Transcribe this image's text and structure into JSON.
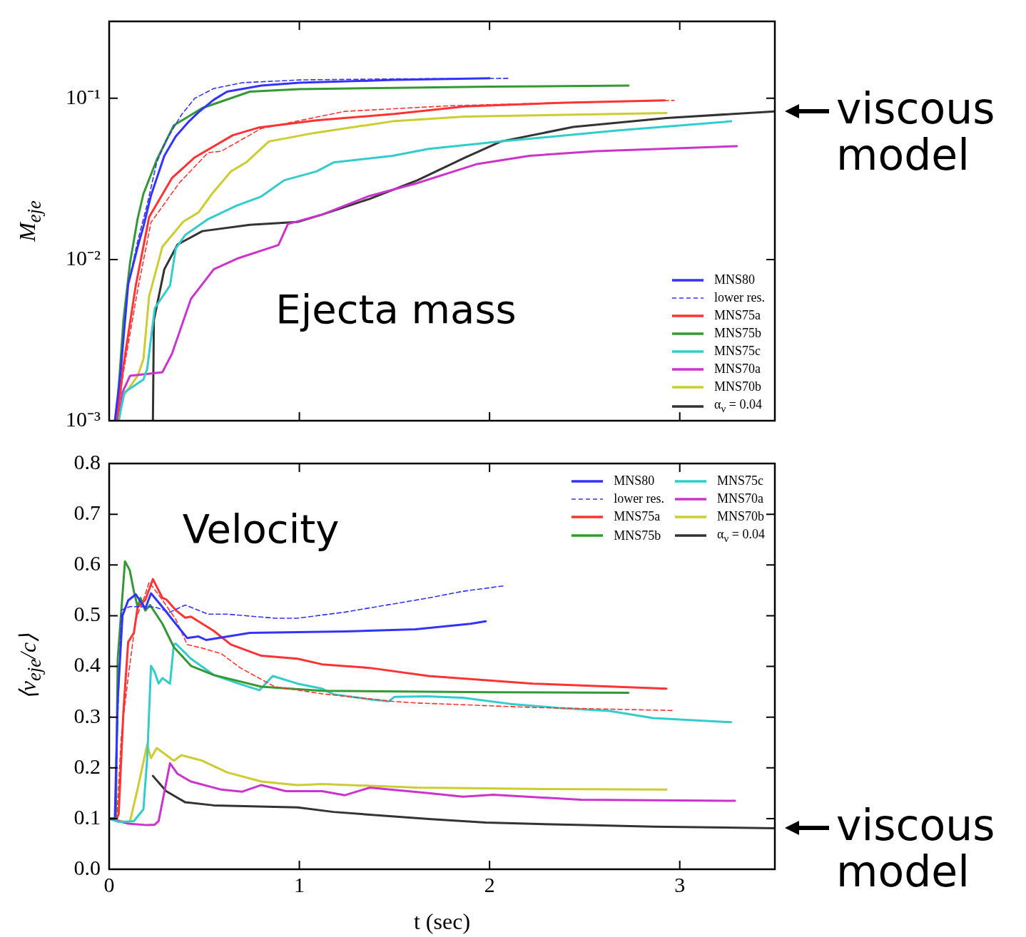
{
  "chart_data": [
    {
      "type": "line",
      "ylabel": "M$_{eje}$",
      "annotations": [
        "Ejecta mass",
        {
          "text": "viscous model",
          "x": 3.5,
          "y": 0.083
        }
      ],
      "xlim": [
        0,
        3.5
      ],
      "ylim": [
        0.001,
        0.3
      ],
      "xticks": [
        0,
        1,
        2,
        3
      ],
      "yticks": [
        {
          "value": 0.001,
          "label": "10⁻³"
        },
        {
          "value": 0.01,
          "label": "10⁻²"
        },
        {
          "value": 0.1,
          "label": "10⁻¹"
        }
      ],
      "log": "y",
      "tick_labels": "y",
      "legend": "bottom right",
      "series": [
        {
          "name": "MNS80",
          "color": "#3333ff",
          "x": [
            0.03,
            0.06,
            0.1,
            0.15,
            0.18,
            0.22,
            0.29,
            0.35,
            0.42,
            0.47,
            0.55,
            0.62,
            0.8,
            1.0,
            1.5,
            2.0
          ],
          "values": [
            0.001,
            0.002,
            0.007,
            0.012,
            0.016,
            0.025,
            0.044,
            0.058,
            0.072,
            0.082,
            0.098,
            0.11,
            0.12,
            0.125,
            0.13,
            0.133
          ]
        },
        {
          "name": "lower res.",
          "color": "#3333ff",
          "line_style": "dashed",
          "x": [
            0.03,
            0.06,
            0.1,
            0.15,
            0.2,
            0.25,
            0.3,
            0.38,
            0.45,
            0.55,
            0.7,
            1.0,
            1.5,
            2.1
          ],
          "values": [
            0.001,
            0.002,
            0.007,
            0.013,
            0.022,
            0.04,
            0.055,
            0.079,
            0.1,
            0.115,
            0.125,
            0.13,
            0.132,
            0.133
          ]
        },
        {
          "name": "MNS75a",
          "color": "#ff3333",
          "x": [
            0.04,
            0.075,
            0.14,
            0.21,
            0.33,
            0.45,
            0.65,
            0.79,
            1.09,
            1.5,
            1.87,
            2.4,
            2.92
          ],
          "values": [
            0.001,
            0.0022,
            0.0069,
            0.0183,
            0.032,
            0.043,
            0.059,
            0.066,
            0.073,
            0.08,
            0.089,
            0.094,
            0.097
          ]
        },
        {
          "color": "#ff3333",
          "line_style": "dashed",
          "x": [
            0.04,
            0.075,
            0.15,
            0.22,
            0.37,
            0.52,
            0.59,
            0.8,
            1.24,
            1.8,
            2.4,
            2.97
          ],
          "values": [
            0.001,
            0.002,
            0.0065,
            0.017,
            0.03,
            0.046,
            0.047,
            0.065,
            0.083,
            0.09,
            0.094,
            0.097
          ]
        },
        {
          "name": "MNS75b",
          "color": "#339933",
          "x": [
            0.04,
            0.05,
            0.075,
            0.11,
            0.15,
            0.18,
            0.25,
            0.34,
            0.49,
            0.74,
            1.0,
            1.5,
            2.0,
            2.73
          ],
          "values": [
            0.001,
            0.0016,
            0.0042,
            0.0096,
            0.018,
            0.0255,
            0.0415,
            0.068,
            0.087,
            0.11,
            0.114,
            0.116,
            0.118,
            0.12
          ]
        },
        {
          "name": "MNS75c",
          "color": "#33cccc",
          "x": [
            0.05,
            0.08,
            0.18,
            0.2,
            0.24,
            0.32,
            0.35,
            0.4,
            0.52,
            0.67,
            0.8,
            0.92,
            1.09,
            1.18,
            1.49,
            1.68,
            2.06,
            2.66,
            3.27
          ],
          "values": [
            0.001,
            0.0015,
            0.0018,
            0.0021,
            0.005,
            0.0069,
            0.0117,
            0.0142,
            0.0178,
            0.0216,
            0.0246,
            0.031,
            0.0352,
            0.04,
            0.044,
            0.0486,
            0.054,
            0.063,
            0.072
          ]
        },
        {
          "name": "MNS70a",
          "color": "#cc33cc",
          "x": [
            0.05,
            0.07,
            0.11,
            0.28,
            0.33,
            0.43,
            0.55,
            0.68,
            0.89,
            0.94,
            1.12,
            1.36,
            1.62,
            1.93,
            2.21,
            2.56,
            3.3
          ],
          "values": [
            0.001,
            0.0015,
            0.0019,
            0.002,
            0.0026,
            0.0057,
            0.0087,
            0.0102,
            0.0123,
            0.0166,
            0.019,
            0.0246,
            0.0298,
            0.039,
            0.044,
            0.047,
            0.0505
          ]
        },
        {
          "name": "MNS70b",
          "color": "#cccc33",
          "x": [
            0.05,
            0.07,
            0.15,
            0.18,
            0.21,
            0.28,
            0.39,
            0.47,
            0.54,
            0.64,
            0.72,
            0.84,
            1.08,
            1.49,
            1.87,
            2.4,
            2.93
          ],
          "values": [
            0.001,
            0.0014,
            0.0019,
            0.0024,
            0.0059,
            0.012,
            0.0172,
            0.0196,
            0.0255,
            0.0352,
            0.04,
            0.054,
            0.061,
            0.072,
            0.077,
            0.079,
            0.081
          ]
        },
        {
          "name": "α$_{ν}$ = 0.04",
          "color": "#333333",
          "x": [
            0.23,
            0.235,
            0.29,
            0.36,
            0.49,
            0.74,
            0.99,
            1.12,
            1.37,
            1.62,
            1.87,
            2.06,
            2.44,
            2.93,
            3.5
          ],
          "values": [
            0.001,
            0.0042,
            0.0087,
            0.0124,
            0.015,
            0.0164,
            0.0171,
            0.019,
            0.0238,
            0.031,
            0.0428,
            0.054,
            0.0664,
            0.0754,
            0.083
          ]
        }
      ]
    },
    {
      "type": "line",
      "xlabel": "t (sec)",
      "ylabel": "⟨v$_{eje}$/c⟩",
      "annotations": [
        "Velocity",
        {
          "text": "viscous model",
          "x": 3.5,
          "y": 0.081
        }
      ],
      "xlim": [
        0,
        3.5
      ],
      "ylim": [
        0,
        0.8
      ],
      "xticks": [
        0,
        1,
        2,
        3
      ],
      "yticks": [
        {
          "value": 0,
          "label": "0.0"
        },
        0.1,
        0.2,
        0.3,
        0.4,
        0.5,
        0.6,
        0.7,
        0.8
      ],
      "legend": "top right",
      "series": [
        {
          "name": "MNS80",
          "color": "#3333ff",
          "x": [
            0.0,
            0.03,
            0.045,
            0.07,
            0.1,
            0.14,
            0.19,
            0.22,
            0.28,
            0.35,
            0.41,
            0.47,
            0.51,
            0.74,
            1.24,
            1.61,
            1.9,
            1.98
          ],
          "values": [
            0.1,
            0.1,
            0.333,
            0.5,
            0.53,
            0.542,
            0.514,
            0.544,
            0.517,
            0.484,
            0.456,
            0.459,
            0.452,
            0.466,
            0.469,
            0.473,
            0.484,
            0.489
          ]
        },
        {
          "name": "lower res.",
          "color": "#3333ff",
          "line_style": "dashed",
          "x": [
            0.0,
            0.03,
            0.045,
            0.064,
            0.11,
            0.24,
            0.32,
            0.4,
            0.52,
            0.62,
            0.87,
            0.99,
            1.24,
            1.68,
            1.86,
            2.08
          ],
          "values": [
            0.1,
            0.1,
            0.3,
            0.511,
            0.518,
            0.517,
            0.507,
            0.521,
            0.503,
            0.503,
            0.495,
            0.495,
            0.507,
            0.535,
            0.548,
            0.559
          ]
        },
        {
          "name": "MNS75a",
          "color": "#ff3333",
          "x": [
            0.0,
            0.04,
            0.05,
            0.075,
            0.1,
            0.13,
            0.15,
            0.19,
            0.23,
            0.28,
            0.3,
            0.35,
            0.4,
            0.43,
            0.55,
            0.64,
            0.8,
            0.99,
            1.12,
            1.37,
            1.68,
            2.23,
            2.93
          ],
          "values": [
            0.1,
            0.1,
            0.109,
            0.311,
            0.448,
            0.466,
            0.517,
            0.531,
            0.572,
            0.535,
            0.532,
            0.511,
            0.496,
            0.498,
            0.47,
            0.443,
            0.421,
            0.415,
            0.404,
            0.397,
            0.381,
            0.366,
            0.356
          ]
        },
        {
          "color": "#ff3333",
          "line_style": "dashed",
          "x": [
            0.0,
            0.04,
            0.064,
            0.1,
            0.14,
            0.18,
            0.21,
            0.28,
            0.35,
            0.41,
            0.49,
            0.59,
            0.69,
            0.87,
            1.12,
            1.49,
            1.61,
            2.23,
            2.96
          ],
          "values": [
            0.1,
            0.1,
            0.264,
            0.379,
            0.493,
            0.531,
            0.566,
            0.531,
            0.493,
            0.443,
            0.436,
            0.425,
            0.397,
            0.36,
            0.346,
            0.331,
            0.328,
            0.319,
            0.313
          ]
        },
        {
          "name": "MNS75b",
          "color": "#339933",
          "x": [
            0.0,
            0.035,
            0.045,
            0.083,
            0.108,
            0.13,
            0.15,
            0.165,
            0.19,
            0.215,
            0.28,
            0.34,
            0.43,
            0.55,
            0.8,
            1.12,
            2.0,
            2.73
          ],
          "values": [
            0.1,
            0.1,
            0.415,
            0.607,
            0.59,
            0.548,
            0.517,
            0.535,
            0.51,
            0.521,
            0.484,
            0.438,
            0.401,
            0.383,
            0.36,
            0.352,
            0.349,
            0.348
          ]
        },
        {
          "name": "MNS75c",
          "color": "#33cccc",
          "x": [
            0.0,
            0.05,
            0.13,
            0.18,
            0.2,
            0.22,
            0.24,
            0.26,
            0.28,
            0.32,
            0.34,
            0.35,
            0.43,
            0.55,
            0.68,
            0.79,
            0.86,
            0.99,
            1.12,
            1.18,
            1.37,
            1.47,
            1.5,
            1.67,
            1.86,
            2.11,
            2.36,
            2.63,
            2.86,
            3.27
          ],
          "values": [
            0.1,
            0.093,
            0.095,
            0.118,
            0.219,
            0.401,
            0.388,
            0.366,
            0.377,
            0.366,
            0.443,
            0.445,
            0.415,
            0.383,
            0.366,
            0.353,
            0.381,
            0.366,
            0.356,
            0.345,
            0.335,
            0.331,
            0.34,
            0.341,
            0.338,
            0.326,
            0.318,
            0.312,
            0.298,
            0.29
          ]
        },
        {
          "name": "MNS70a",
          "color": "#cc33cc",
          "x": [
            0.0,
            0.1,
            0.2,
            0.24,
            0.26,
            0.32,
            0.36,
            0.43,
            0.59,
            0.7,
            0.8,
            0.93,
            1.12,
            1.24,
            1.37,
            1.68,
            1.86,
            2.02,
            2.48,
            3.29
          ],
          "values": [
            0.1,
            0.09,
            0.087,
            0.088,
            0.095,
            0.209,
            0.188,
            0.173,
            0.157,
            0.153,
            0.166,
            0.154,
            0.154,
            0.146,
            0.161,
            0.15,
            0.143,
            0.147,
            0.137,
            0.135
          ]
        },
        {
          "name": "MNS70b",
          "color": "#cccc33",
          "x": [
            0.0,
            0.1,
            0.11,
            0.15,
            0.2,
            0.22,
            0.25,
            0.34,
            0.38,
            0.49,
            0.62,
            0.8,
            0.99,
            1.12,
            1.62,
            2.3,
            2.93
          ],
          "values": [
            0.1,
            0.092,
            0.095,
            0.159,
            0.246,
            0.219,
            0.239,
            0.214,
            0.225,
            0.214,
            0.191,
            0.173,
            0.166,
            0.168,
            0.161,
            0.158,
            0.157
          ]
        },
        {
          "name": "α$_{ν}$ = 0.04",
          "color": "#333333",
          "x": [
            0.23,
            0.3,
            0.4,
            0.55,
            0.99,
            1.18,
            1.68,
            1.98,
            2.5,
            2.86,
            3.5
          ],
          "values": [
            0.184,
            0.154,
            0.132,
            0.126,
            0.122,
            0.113,
            0.099,
            0.092,
            0.087,
            0.084,
            0.081
          ]
        }
      ]
    }
  ]
}
